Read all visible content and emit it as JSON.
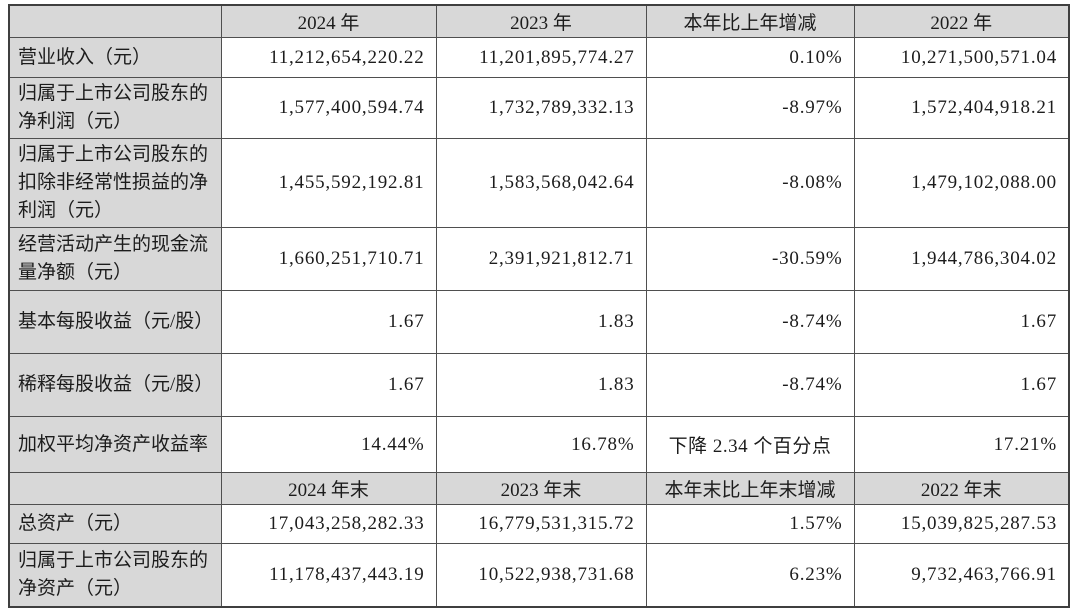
{
  "colors": {
    "header_bg": "#d8d8d8",
    "cell_bg": "#ffffff",
    "border": "#4f4f4f",
    "outer_border": "#3f3f3f",
    "text": "#1c1c1c"
  },
  "table": {
    "rows": [
      {
        "type": "header",
        "label": "",
        "values": [
          "2024 年",
          "2023 年",
          "本年比上年增减",
          "2022 年"
        ],
        "height": 32
      },
      {
        "type": "data",
        "label": "营业收入（元）",
        "values": [
          "11,212,654,220.22",
          "11,201,895,774.27",
          "0.10%",
          "10,271,500,571.04"
        ],
        "height": 40
      },
      {
        "type": "data",
        "label": "归属于上市公司股东的净利润（元）",
        "values": [
          "1,577,400,594.74",
          "1,732,789,332.13",
          "-8.97%",
          "1,572,404,918.21"
        ],
        "height": 60
      },
      {
        "type": "data",
        "label": "归属于上市公司股东的扣除非经常性损益的净利润（元）",
        "values": [
          "1,455,592,192.81",
          "1,583,568,042.64",
          "-8.08%",
          "1,479,102,088.00"
        ],
        "height": 89
      },
      {
        "type": "data",
        "label": "经营活动产生的现金流量净额（元）",
        "values": [
          "1,660,251,710.71",
          "2,391,921,812.71",
          "-30.59%",
          "1,944,786,304.02"
        ],
        "height": 63
      },
      {
        "type": "data",
        "label": "基本每股收益（元/股）",
        "values": [
          "1.67",
          "1.83",
          "-8.74%",
          "1.67"
        ],
        "height": 63
      },
      {
        "type": "data",
        "label": "稀释每股收益（元/股）",
        "values": [
          "1.67",
          "1.83",
          "-8.74%",
          "1.67"
        ],
        "height": 63
      },
      {
        "type": "data",
        "label": "加权平均净资产收益率",
        "values": [
          "14.44%",
          "16.78%",
          "下降 2.34 个百分点",
          "17.21%"
        ],
        "height": 56,
        "col3_align": "center"
      },
      {
        "type": "header",
        "label": "",
        "values": [
          "2024 年末",
          "2023 年末",
          "本年末比上年末增减",
          "2022 年末"
        ],
        "height": 32
      },
      {
        "type": "data",
        "label": "总资产（元）",
        "values": [
          "17,043,258,282.33",
          "16,779,531,315.72",
          "1.57%",
          "15,039,825,287.53"
        ],
        "height": 39
      },
      {
        "type": "data",
        "label": "归属于上市公司股东的净资产（元）",
        "values": [
          "11,178,437,443.19",
          "10,522,938,731.68",
          "6.23%",
          "9,732,463,766.91"
        ],
        "height": 63
      }
    ]
  }
}
